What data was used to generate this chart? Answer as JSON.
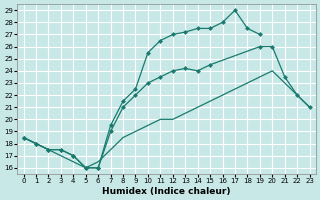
{
  "xlabel": "Humidex (Indice chaleur)",
  "bg_color": "#c8e8e8",
  "grid_color": "#ffffff",
  "line_color": "#1a7a6e",
  "xlim": [
    -0.5,
    23.5
  ],
  "ylim": [
    15.5,
    29.5
  ],
  "xticks": [
    0,
    1,
    2,
    3,
    4,
    5,
    6,
    7,
    8,
    9,
    10,
    11,
    12,
    13,
    14,
    15,
    16,
    17,
    18,
    19,
    20,
    21,
    22,
    23
  ],
  "yticks": [
    16,
    17,
    18,
    19,
    20,
    21,
    22,
    23,
    24,
    25,
    26,
    27,
    28,
    29
  ],
  "upper_x": [
    0,
    1,
    2,
    3,
    4,
    5,
    6,
    7,
    8,
    9,
    10,
    11,
    12,
    13,
    14,
    15,
    16,
    17,
    18,
    19
  ],
  "upper_y": [
    18.5,
    18.0,
    17.5,
    17.5,
    17.0,
    16.0,
    16.0,
    19.5,
    21.5,
    22.5,
    25.5,
    26.5,
    27.0,
    27.2,
    27.5,
    27.5,
    28.0,
    29.0,
    27.5,
    27.0
  ],
  "mid_x": [
    0,
    1,
    2,
    3,
    4,
    5,
    6,
    7,
    8,
    9,
    10,
    11,
    12,
    13,
    14,
    15,
    19,
    20,
    21,
    22,
    23
  ],
  "mid_y": [
    18.5,
    18.0,
    17.5,
    17.5,
    17.0,
    16.0,
    16.0,
    19.0,
    21.0,
    22.0,
    23.0,
    23.5,
    24.0,
    24.2,
    24.0,
    24.5,
    26.0,
    26.0,
    23.5,
    22.0,
    21.0
  ],
  "bot_x": [
    0,
    1,
    2,
    3,
    4,
    5,
    6,
    7,
    8,
    9,
    10,
    11,
    12,
    13,
    14,
    15,
    16,
    17,
    18,
    19,
    20,
    23
  ],
  "bot_y": [
    18.5,
    18.0,
    17.5,
    17.0,
    16.5,
    16.0,
    16.5,
    17.5,
    18.5,
    19.0,
    19.5,
    20.0,
    20.0,
    20.5,
    21.0,
    21.5,
    22.0,
    22.5,
    23.0,
    23.5,
    24.0,
    21.0
  ]
}
